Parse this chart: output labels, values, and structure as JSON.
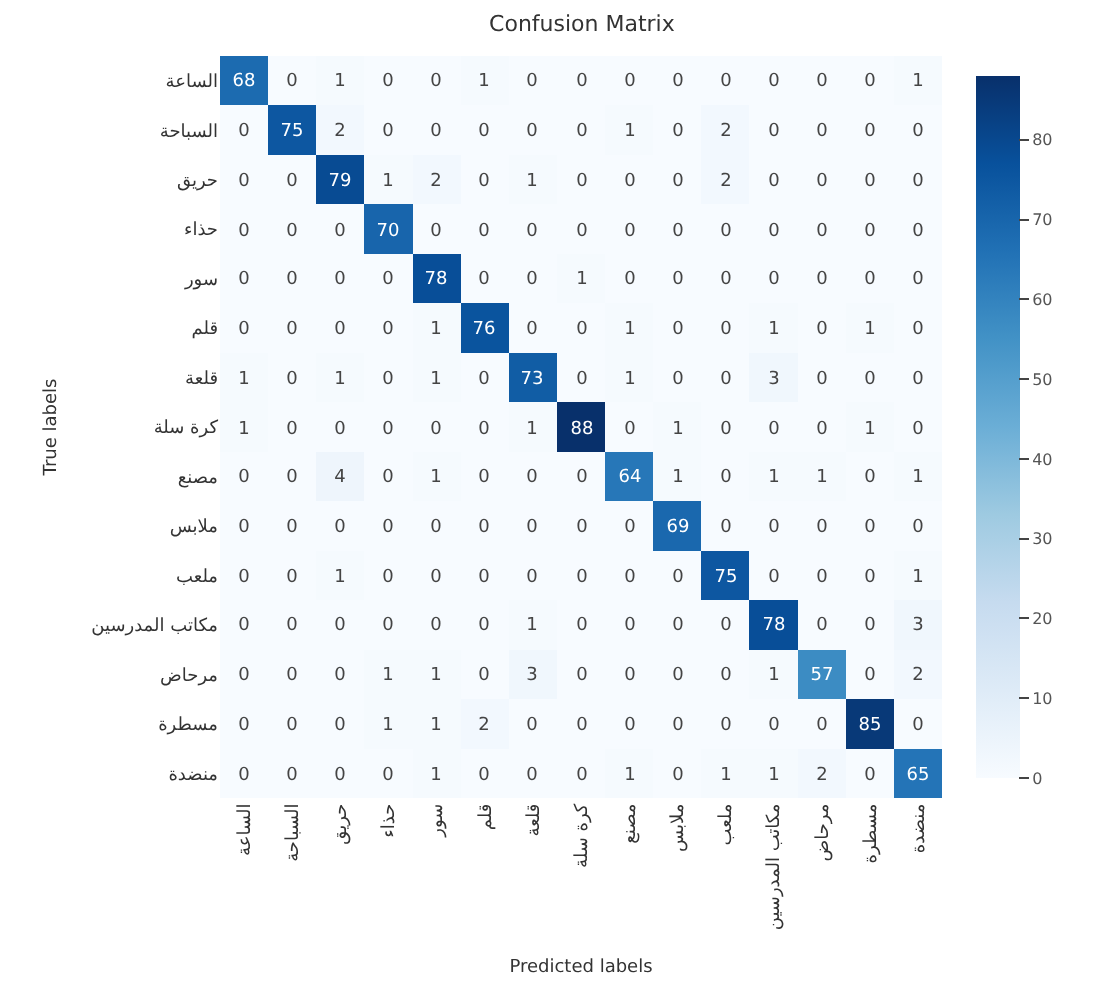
{
  "chart_data": {
    "type": "heatmap",
    "title": "Confusion Matrix",
    "xlabel": "Predicted labels",
    "ylabel": "True labels",
    "categories": [
      "الساعة",
      "السباحة",
      "حريق",
      "حذاء",
      "سور",
      "قلم",
      "قلعة",
      "كرة سلة",
      "مصنع",
      "ملابس",
      "ملعب",
      "مكاتب المدرسين",
      "مرحاض",
      "مسطرة",
      "منضدة"
    ],
    "y_categories": [
      "الساعة",
      "السباحة",
      "حريق",
      "حذاء",
      "سور",
      "قلم",
      "قلعة",
      "كرة سلة",
      "مصنع",
      "ملابس",
      "ملعب",
      "مكاتب المدرسين",
      "مرحاض",
      "مسطرة",
      "منضدة"
    ],
    "cells": [
      [
        68,
        0,
        1,
        0,
        0,
        1,
        0,
        0,
        0,
        0,
        0,
        0,
        0,
        0,
        1
      ],
      [
        0,
        75,
        2,
        0,
        0,
        0,
        0,
        0,
        1,
        0,
        2,
        0,
        0,
        0,
        0
      ],
      [
        0,
        0,
        79,
        1,
        2,
        0,
        1,
        0,
        0,
        0,
        2,
        0,
        0,
        0,
        0
      ],
      [
        0,
        0,
        0,
        70,
        0,
        0,
        0,
        0,
        0,
        0,
        0,
        0,
        0,
        0,
        0
      ],
      [
        0,
        0,
        0,
        0,
        78,
        0,
        0,
        1,
        0,
        0,
        0,
        0,
        0,
        0,
        0
      ],
      [
        0,
        0,
        0,
        0,
        1,
        76,
        0,
        0,
        1,
        0,
        0,
        1,
        0,
        1,
        0
      ],
      [
        1,
        0,
        1,
        0,
        1,
        0,
        73,
        0,
        1,
        0,
        0,
        3,
        0,
        0,
        0
      ],
      [
        1,
        0,
        0,
        0,
        0,
        0,
        1,
        88,
        0,
        1,
        0,
        0,
        0,
        1,
        0
      ],
      [
        0,
        0,
        4,
        0,
        1,
        0,
        0,
        0,
        64,
        1,
        0,
        1,
        1,
        0,
        1
      ],
      [
        0,
        0,
        0,
        0,
        0,
        0,
        0,
        0,
        0,
        69,
        0,
        0,
        0,
        0,
        0
      ],
      [
        0,
        0,
        1,
        0,
        0,
        0,
        0,
        0,
        0,
        0,
        75,
        0,
        0,
        0,
        1
      ],
      [
        0,
        0,
        0,
        0,
        0,
        0,
        1,
        0,
        0,
        0,
        0,
        78,
        0,
        0,
        3
      ],
      [
        0,
        0,
        0,
        1,
        1,
        0,
        3,
        0,
        0,
        0,
        0,
        1,
        57,
        0,
        2
      ],
      [
        0,
        0,
        0,
        1,
        1,
        2,
        0,
        0,
        0,
        0,
        0,
        0,
        0,
        85,
        0
      ],
      [
        0,
        0,
        0,
        0,
        1,
        0,
        0,
        0,
        1,
        0,
        1,
        1,
        2,
        0,
        65
      ]
    ],
    "clim": [
      0,
      88
    ],
    "cticks": [
      0,
      10,
      20,
      30,
      40,
      50,
      60,
      70,
      80
    ],
    "data_labels": true
  }
}
